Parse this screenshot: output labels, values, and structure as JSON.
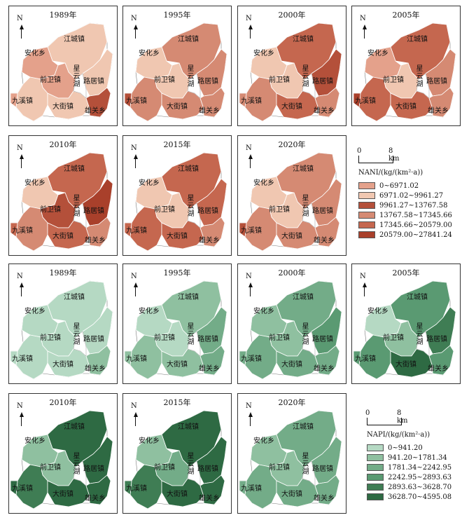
{
  "labels": {
    "north": "N",
    "towns": [
      "江城镇",
      "安化乡",
      "前卫镇",
      "路居镇",
      "九溪镇",
      "大街镇",
      "雄关乡"
    ],
    "lake": [
      "星",
      "云",
      "湖"
    ]
  },
  "nani_panels": [
    {
      "year": "1989年",
      "classes": [
        1,
        0,
        0,
        1,
        1,
        1,
        2,
        0
      ]
    },
    {
      "year": "1995年",
      "classes": [
        3,
        1,
        1,
        3,
        3,
        3,
        3,
        2
      ]
    },
    {
      "year": "2000年",
      "classes": [
        4,
        1,
        1,
        2,
        3,
        4,
        3,
        3
      ]
    },
    {
      "year": "2005年",
      "classes": [
        4,
        0,
        1,
        3,
        4,
        4,
        3,
        5
      ]
    },
    {
      "year": "2010年",
      "classes": [
        4,
        1,
        2,
        5,
        3,
        4,
        3,
        4
      ]
    },
    {
      "year": "2015年",
      "classes": [
        4,
        1,
        1,
        4,
        4,
        4,
        3,
        4
      ]
    },
    {
      "year": "2020年",
      "classes": [
        3,
        1,
        1,
        3,
        3,
        3,
        3,
        2
      ]
    }
  ],
  "napi_panels": [
    {
      "year": "1989年",
      "classes": [
        0,
        0,
        0,
        0,
        0,
        0,
        1,
        0
      ]
    },
    {
      "year": "1995年",
      "classes": [
        1,
        0,
        0,
        2,
        1,
        1,
        2,
        1
      ]
    },
    {
      "year": "2000年",
      "classes": [
        2,
        1,
        1,
        3,
        2,
        2,
        2,
        2
      ]
    },
    {
      "year": "2005年",
      "classes": [
        3,
        0,
        1,
        4,
        3,
        5,
        3,
        3
      ]
    },
    {
      "year": "2010年",
      "classes": [
        5,
        1,
        1,
        5,
        4,
        5,
        5,
        5
      ]
    },
    {
      "year": "2015年",
      "classes": [
        5,
        1,
        2,
        5,
        4,
        5,
        5,
        4
      ]
    },
    {
      "year": "2020年",
      "classes": [
        2,
        1,
        1,
        2,
        2,
        2,
        2,
        2
      ]
    }
  ],
  "nani_legend": {
    "scale_min": "0",
    "scale_max": "8 km",
    "title": "NANI/(kg/(km²·a))",
    "items": [
      "0~6971.02",
      "6971.02~9961.27",
      "9961.27~13767.58",
      "13767.58~17345.66",
      "17345.66~20579.00",
      "20579.00~27841.24"
    ],
    "colors": [
      "#e4a18b",
      "#f0c7b1",
      "#b4503a",
      "#d58a73",
      "#c5674f",
      "#a9402b"
    ]
  },
  "napi_legend": {
    "scale_min": "0",
    "scale_max": "8 km",
    "title": "NAPI/(kg/(km²·a))",
    "items": [
      "0~941.20",
      "941.20~1781.34",
      "1781.34~2242.95",
      "2242.95~2893.63",
      "2893.63~3628.70",
      "3628.70~4595.08"
    ],
    "colors": [
      "#b5d9c3",
      "#8fc0a0",
      "#73ac88",
      "#5a9a72",
      "#3f7d54",
      "#2e6a43"
    ]
  }
}
